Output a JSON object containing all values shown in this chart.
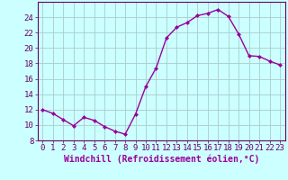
{
  "x": [
    0,
    1,
    2,
    3,
    4,
    5,
    6,
    7,
    8,
    9,
    10,
    11,
    12,
    13,
    14,
    15,
    16,
    17,
    18,
    19,
    20,
    21,
    22,
    23
  ],
  "y": [
    12.0,
    11.5,
    10.7,
    9.9,
    11.0,
    10.6,
    9.8,
    9.2,
    8.8,
    11.4,
    15.0,
    17.4,
    21.3,
    22.7,
    23.3,
    24.2,
    24.5,
    25.0,
    24.1,
    21.8,
    19.0,
    18.9,
    18.3,
    17.8
  ],
  "line_color": "#990099",
  "marker": "D",
  "marker_size": 2,
  "bg_color": "#ccffff",
  "grid_color": "#aacccc",
  "xlabel": "Windchill (Refroidissement éolien,°C)",
  "xlabel_fontsize": 7,
  "ylim": [
    8,
    26
  ],
  "yticks": [
    8,
    10,
    12,
    14,
    16,
    18,
    20,
    22,
    24
  ],
  "xlim": [
    -0.5,
    23.5
  ],
  "xticks": [
    0,
    1,
    2,
    3,
    4,
    5,
    6,
    7,
    8,
    9,
    10,
    11,
    12,
    13,
    14,
    15,
    16,
    17,
    18,
    19,
    20,
    21,
    22,
    23
  ],
  "tick_fontsize": 6.5,
  "label_color": "#990099",
  "axes_color": "#660066",
  "linewidth": 1.0
}
